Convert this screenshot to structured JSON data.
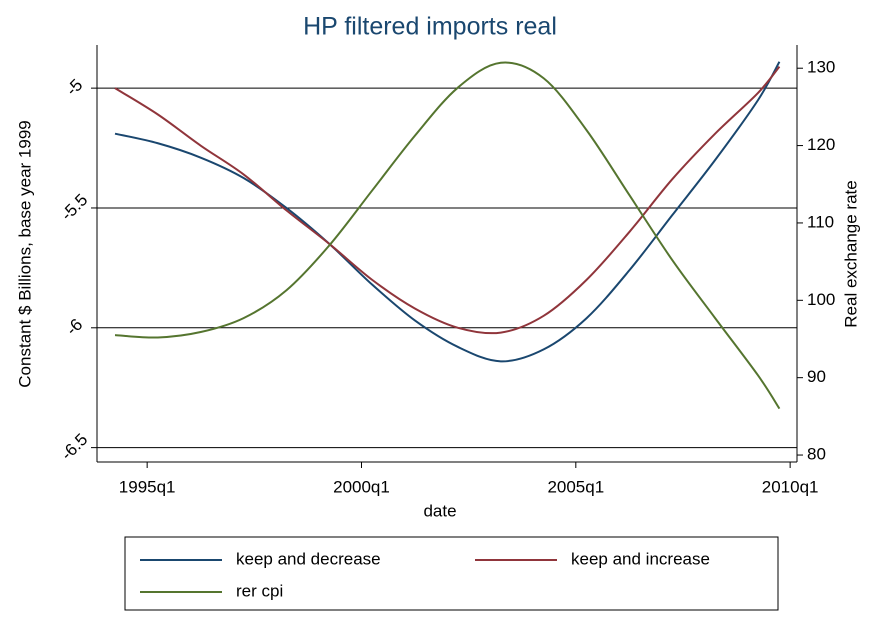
{
  "chart_data": {
    "type": "line",
    "title": "HP filtered imports real",
    "xlabel": "date",
    "ylabel": "Constant $ Billions, base year 1999",
    "y2label": "Real exchange rate",
    "x": [
      1994.25,
      1995.25,
      1996.25,
      1997.25,
      1998.25,
      1999.25,
      2000.25,
      2001.25,
      2002.25,
      2003.25,
      2004.25,
      2005.25,
      2006.25,
      2007.25,
      2008.25,
      2009.25,
      2009.75
    ],
    "series": [
      {
        "name": "keep and decrease",
        "color": "#1a476f",
        "values": [
          -5.19,
          -5.23,
          -5.29,
          -5.375,
          -5.5,
          -5.65,
          -5.82,
          -5.97,
          -6.08,
          -6.14,
          -6.09,
          -5.96,
          -5.76,
          -5.53,
          -5.3,
          -5.05,
          -4.89
        ]
      },
      {
        "name": "keep and increase",
        "color": "#90353b",
        "values": [
          -5.0,
          -5.11,
          -5.24,
          -5.36,
          -5.51,
          -5.65,
          -5.8,
          -5.92,
          -6.0,
          -6.02,
          -5.95,
          -5.8,
          -5.6,
          -5.38,
          -5.19,
          -5.02,
          -4.91
        ]
      },
      {
        "name": "rer cpi",
        "color": "#55752f",
        "axis": "y2",
        "values": [
          95.5,
          95.2,
          95.9,
          97.7,
          101.3,
          107.1,
          114.2,
          121.3,
          127.5,
          130.7,
          128.7,
          122.0,
          113.6,
          105.2,
          97.7,
          90.3,
          86.0
        ]
      }
    ],
    "xlim": [
      1993.83,
      2010.16
    ],
    "xticks": [
      {
        "value": 1995,
        "label": "1995q1"
      },
      {
        "value": 2000,
        "label": "2000q1"
      },
      {
        "value": 2005,
        "label": "2005q1"
      },
      {
        "value": 2010,
        "label": "2010q1"
      }
    ],
    "ylim": [
      -6.56,
      -4.82
    ],
    "yticks": [
      -5,
      -5.5,
      -6,
      -6.5
    ],
    "y2lim": [
      79.1,
      133
    ],
    "y2ticks": [
      80,
      90,
      100,
      110,
      120,
      130
    ],
    "grid": true,
    "legend": "bottom"
  }
}
